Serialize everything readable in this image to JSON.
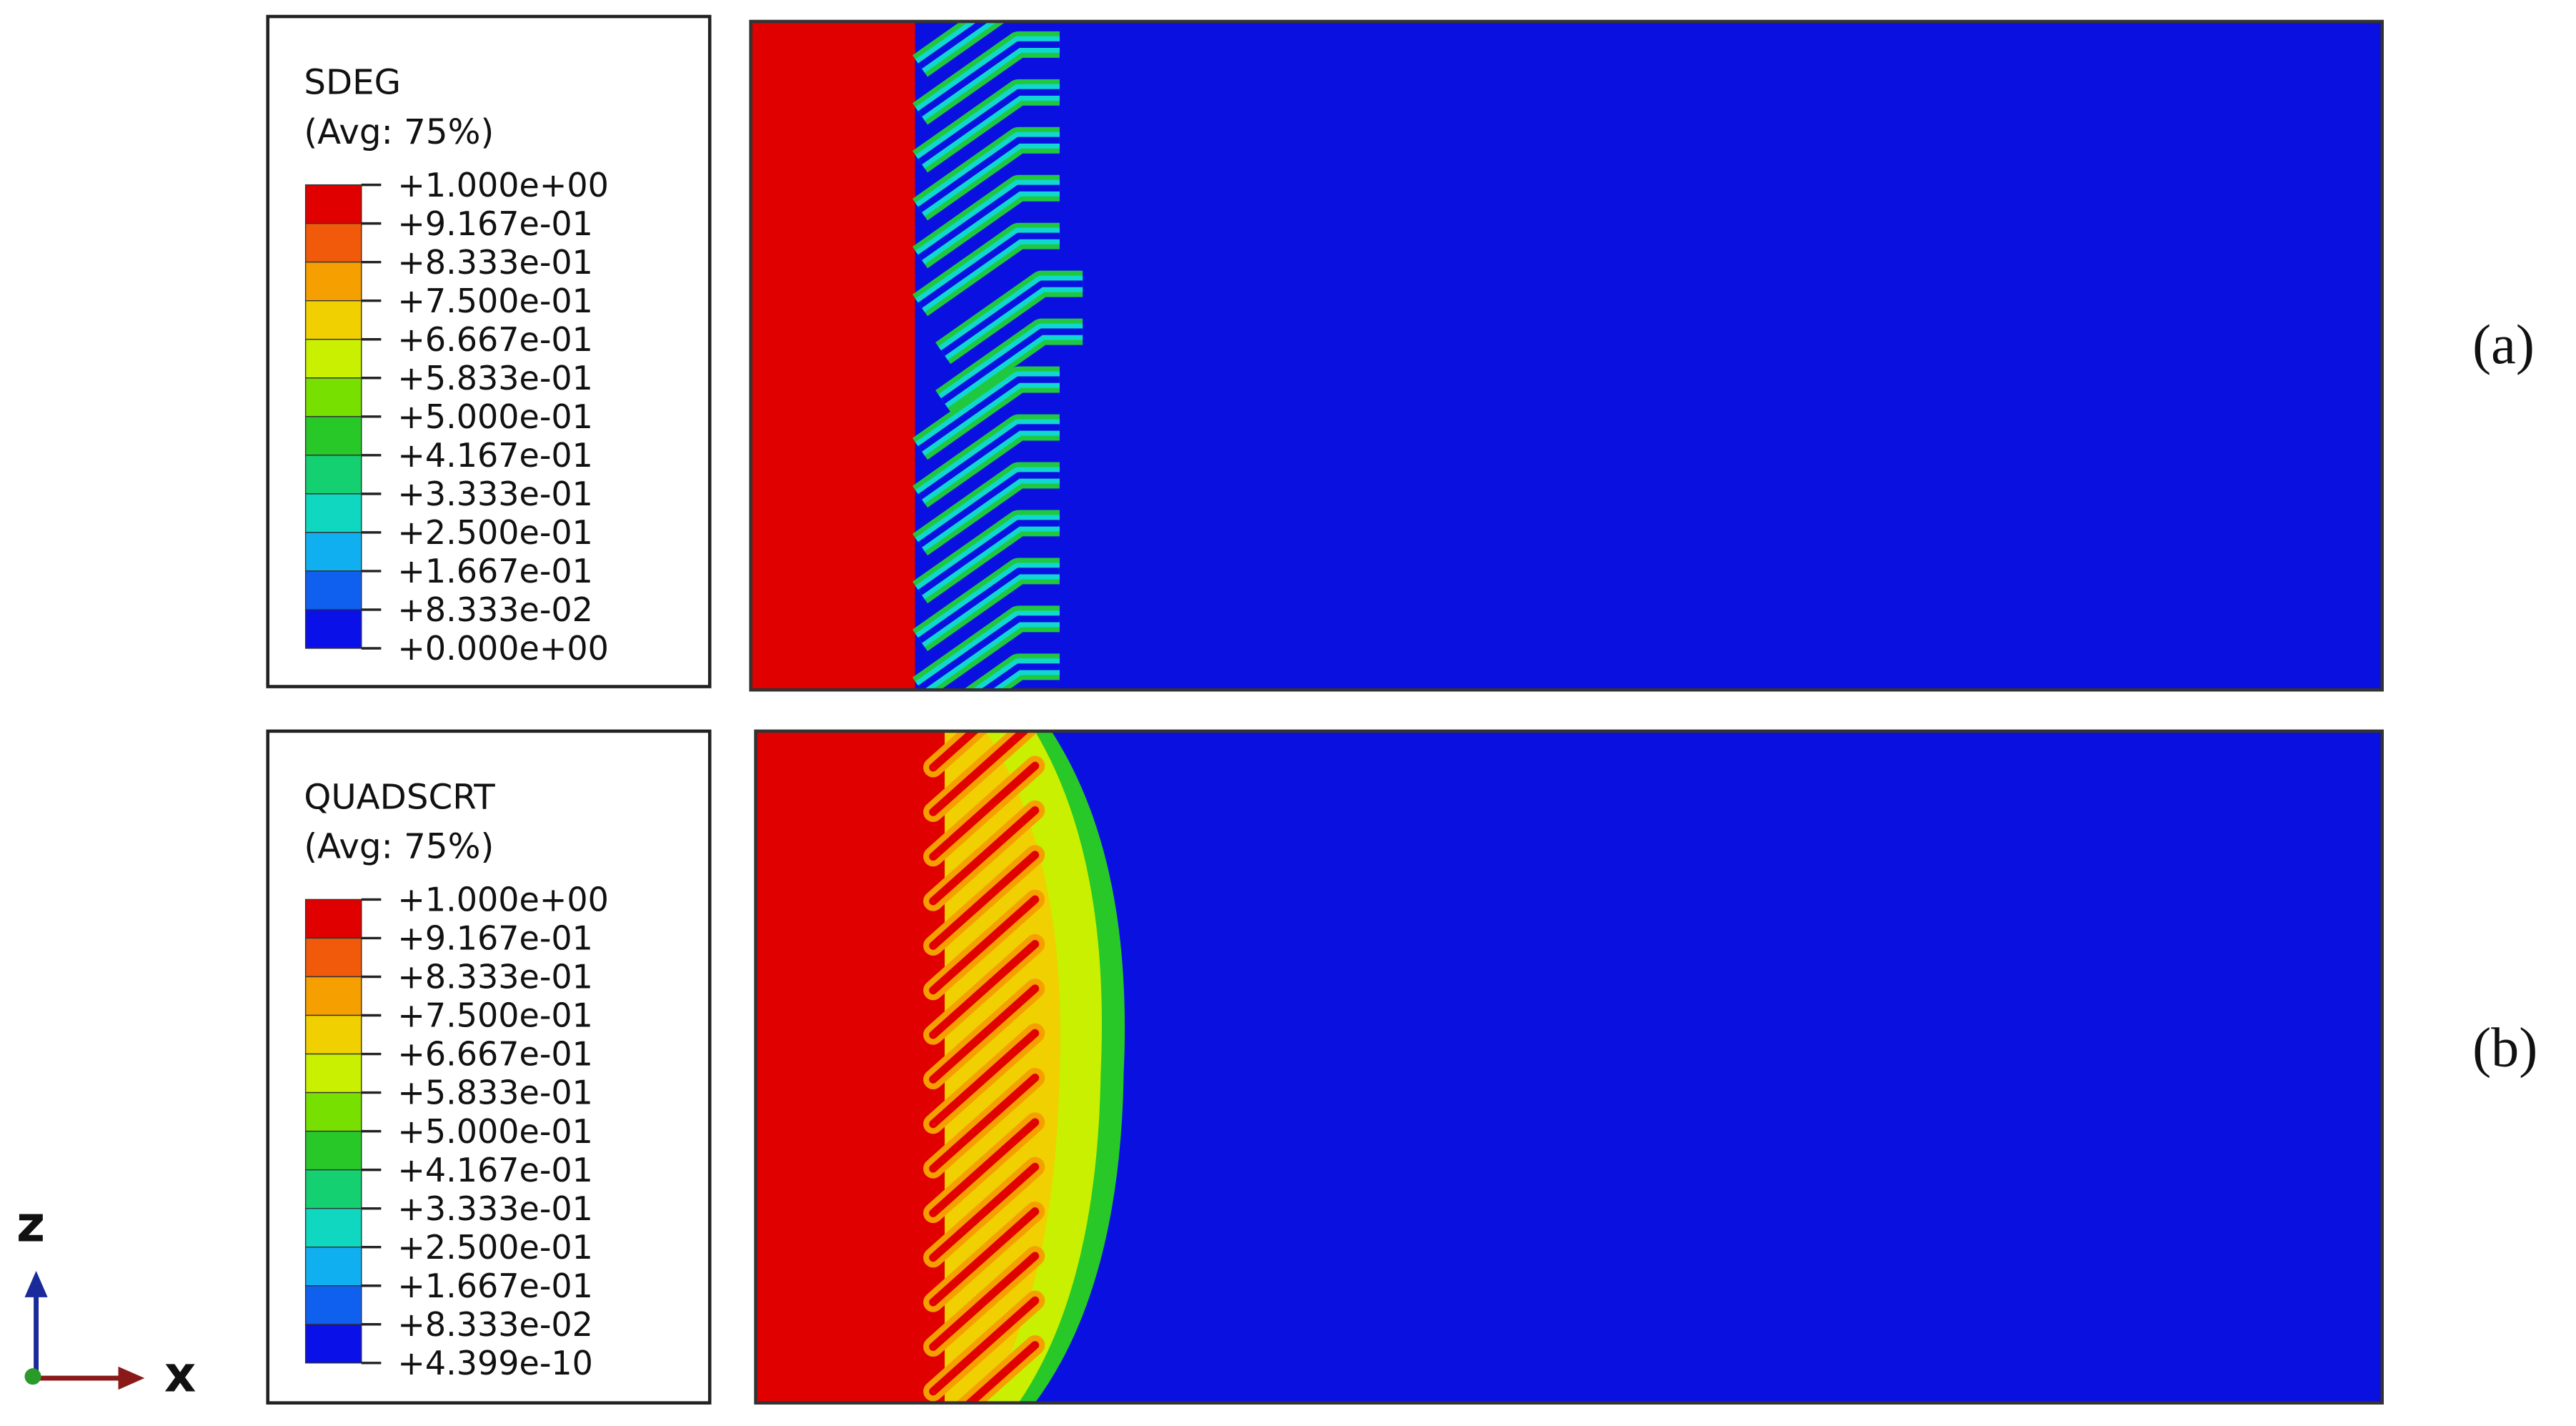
{
  "panels": [
    {
      "legend": {
        "title": "SDEG",
        "subtitle": "(Avg: 75%)",
        "labels": [
          "+1.000e+00",
          "+9.167e-01",
          "+8.333e-01",
          "+7.500e-01",
          "+6.667e-01",
          "+5.833e-01",
          "+5.000e-01",
          "+4.167e-01",
          "+3.333e-01",
          "+2.500e-01",
          "+1.667e-01",
          "+8.333e-02",
          "+0.000e+00"
        ]
      },
      "label": "(a)"
    },
    {
      "legend": {
        "title": "QUADSCRT",
        "subtitle": "(Avg: 75%)",
        "labels": [
          "+1.000e+00",
          "+9.167e-01",
          "+8.333e-01",
          "+7.500e-01",
          "+6.667e-01",
          "+5.833e-01",
          "+5.000e-01",
          "+4.167e-01",
          "+3.333e-01",
          "+2.500e-01",
          "+1.667e-01",
          "+8.333e-02",
          "+4.399e-10"
        ]
      },
      "label": "(b)"
    }
  ],
  "legend_colors": [
    "#e00000",
    "#f05a0a",
    "#f5a000",
    "#f0d000",
    "#c8f000",
    "#78e000",
    "#28c828",
    "#14d070",
    "#10d8c0",
    "#10b0f0",
    "#1060f0",
    "#0a10e8"
  ],
  "triad": {
    "z": "z",
    "x": "x"
  }
}
